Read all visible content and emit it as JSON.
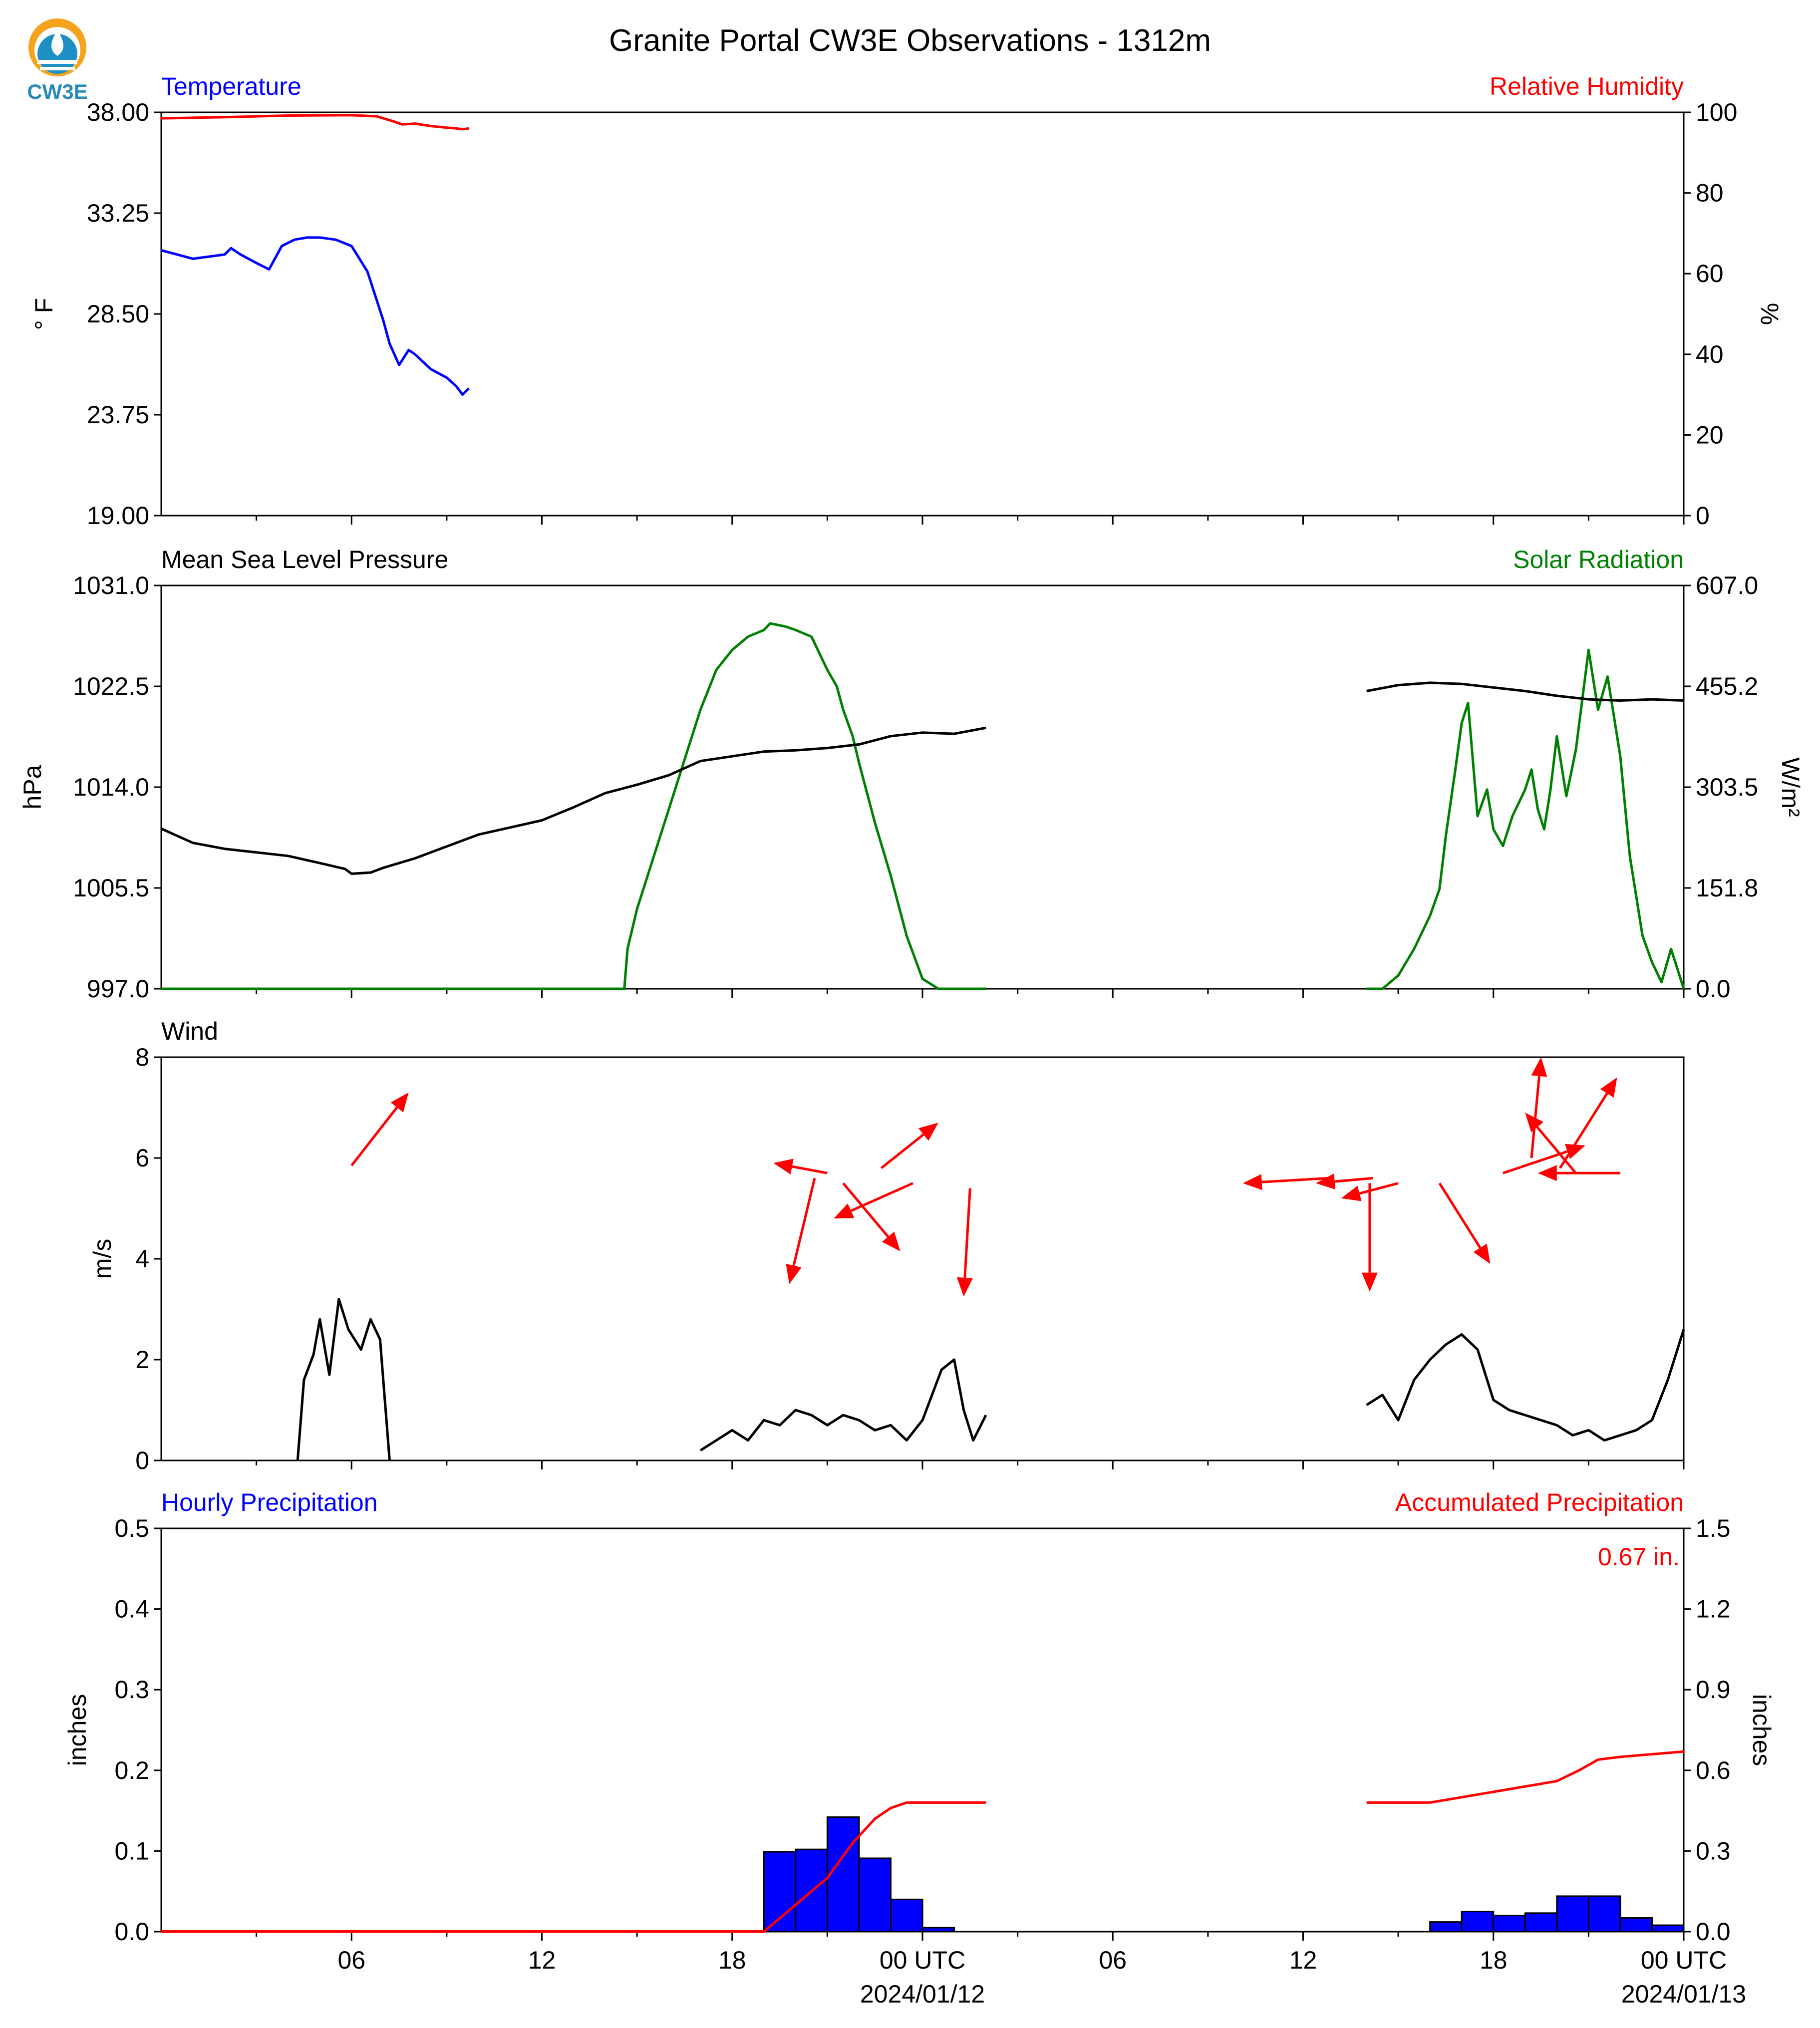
{
  "title": "Granite Portal CW3E Observations - 1312m",
  "logo": {
    "text": "CW3E",
    "colors": {
      "sun": "#f5a21c",
      "drop": "#1e8fc4",
      "text": "#2a8ab8"
    }
  },
  "x_axis": {
    "tick_labels": [
      "06",
      "12",
      "18",
      "00 UTC",
      "06",
      "12",
      "18",
      "00 UTC"
    ],
    "date_labels": [
      "2024/01/12",
      "2024/01/13"
    ]
  },
  "chart_data": [
    {
      "type": "line",
      "panel": "temperature-humidity",
      "left_label": "Temperature",
      "right_label": "Relative Humidity",
      "ylabel_left": "° F",
      "ylabel_right": "%",
      "ylim_left": [
        19.0,
        38.0
      ],
      "ylim_right": [
        0,
        100
      ],
      "yticks_left": [
        "38.00",
        "33.25",
        "28.50",
        "23.75",
        "19.00"
      ],
      "yticks_right": [
        "100",
        "80",
        "60",
        "40",
        "20",
        "0"
      ],
      "series": [
        {
          "axis": "left",
          "color": "#0000ff",
          "x": [
            0,
            1,
            2,
            2.2,
            2.5,
            3,
            3.4,
            3.8,
            4.2,
            4.6,
            5,
            5.5,
            6,
            6.5,
            7,
            7.2,
            7.5,
            7.8,
            8,
            8.5,
            9,
            9.3,
            9.5,
            9.7
          ],
          "y": [
            31.5,
            31.1,
            31.3,
            31.6,
            31.3,
            30.9,
            30.6,
            31.7,
            32.0,
            32.1,
            32.1,
            32.0,
            31.7,
            30.5,
            28.2,
            27.1,
            26.1,
            26.8,
            26.6,
            25.9,
            25.5,
            25.1,
            24.7,
            25.0
          ]
        },
        {
          "axis": "right",
          "color": "#ff0000",
          "x": [
            0,
            2,
            4,
            6,
            6.8,
            7.3,
            7.6,
            8,
            8.5,
            9,
            9.3,
            9.5,
            9.7
          ],
          "y": [
            98.5,
            98.8,
            99.2,
            99.3,
            99.0,
            97.8,
            97.0,
            97.2,
            96.6,
            96.2,
            96.0,
            95.8,
            96.0
          ]
        }
      ]
    },
    {
      "type": "line",
      "panel": "pressure-solar",
      "left_label": "Mean Sea Level Pressure",
      "right_label": "Solar Radiation",
      "ylabel_left": "hPa",
      "ylabel_right": "W/m²",
      "ylim_left": [
        997.0,
        1031.0
      ],
      "ylim_right": [
        0.0,
        607.0
      ],
      "yticks_left": [
        "1031.0",
        "1022.5",
        "1014.0",
        "1005.5",
        "997.0"
      ],
      "yticks_right": [
        "607.0",
        "455.2",
        "303.5",
        "151.8",
        "0.0"
      ],
      "series": [
        {
          "axis": "left",
          "color": "#000000",
          "segments": [
            {
              "x": [
                0,
                1,
                2,
                3,
                4,
                5,
                5.8,
                6,
                6.6,
                7,
                8,
                9,
                10,
                11,
                12,
                13,
                14,
                15,
                16,
                17,
                18,
                19,
                20,
                21,
                22,
                23,
                24,
                25,
                26
              ],
              "y": [
                1010.5,
                1009.3,
                1008.8,
                1008.5,
                1008.2,
                1007.6,
                1007.1,
                1006.7,
                1006.8,
                1007.2,
                1008.0,
                1009.0,
                1010.0,
                1010.6,
                1011.2,
                1012.3,
                1013.5,
                1014.2,
                1015.0,
                1016.2,
                1016.6,
                1017.0,
                1017.1,
                1017.3,
                1017.6,
                1018.3,
                1018.6,
                1018.5,
                1019.0
              ]
            },
            {
              "x": [
                38,
                39,
                40,
                41,
                42,
                43,
                44,
                45,
                46,
                47,
                48
              ],
              "y": [
                1022.1,
                1022.6,
                1022.8,
                1022.7,
                1022.4,
                1022.1,
                1021.7,
                1021.4,
                1021.3,
                1021.4,
                1021.3
              ]
            }
          ]
        },
        {
          "axis": "right",
          "color": "#008000",
          "segments": [
            {
              "x": [
                0,
                10,
                14.6,
                14.7,
                15,
                16,
                17,
                17.5,
                18,
                18.5,
                19,
                19.2,
                19.7,
                20,
                20.5,
                21,
                21.3,
                21.5,
                21.8,
                22,
                22.5,
                23,
                23.5,
                24,
                24.5,
                25,
                25.5,
                26
              ],
              "y": [
                0,
                0,
                0,
                60,
                120,
                270,
                420,
                480,
                510,
                530,
                540,
                550,
                545,
                540,
                530,
                480,
                455,
                420,
                380,
                340,
                250,
                170,
                80,
                15,
                0,
                0,
                0,
                0
              ]
            },
            {
              "x": [
                38,
                38.5,
                39,
                39.5,
                40,
                40.3,
                40.5,
                40.8,
                41,
                41.2,
                41.5,
                41.8,
                42,
                42.3,
                42.6,
                43,
                43.2,
                43.4,
                43.6,
                43.8,
                44,
                44.3,
                44.6,
                45,
                45.3,
                45.6,
                46,
                46.3,
                46.7,
                47,
                47.3,
                47.6,
                48
              ],
              "y": [
                0,
                0,
                20,
                60,
                110,
                150,
                230,
                330,
                400,
                430,
                260,
                300,
                240,
                215,
                260,
                300,
                330,
                270,
                240,
                300,
                380,
                290,
                360,
                510,
                420,
                470,
                350,
                200,
                80,
                40,
                10,
                60,
                0
              ]
            }
          ]
        }
      ]
    },
    {
      "type": "line",
      "panel": "wind",
      "left_label": "Wind",
      "ylabel": "m/s",
      "ylim": [
        0,
        8
      ],
      "yticks": [
        "8",
        "6",
        "4",
        "2",
        "0"
      ],
      "series": [
        {
          "color": "#000000",
          "segments": [
            {
              "x": [
                4.3,
                4.5,
                4.8,
                5,
                5.3,
                5.6,
                5.9,
                6.3,
                6.6,
                6.9,
                7.2
              ],
              "y": [
                0,
                1.6,
                2.1,
                2.8,
                1.7,
                3.2,
                2.6,
                2.2,
                2.8,
                2.4,
                0
              ]
            },
            {
              "x": [
                17.0,
                17.5,
                18,
                18.5,
                19,
                19.5,
                20,
                20.5,
                21,
                21.5,
                22,
                22.5,
                23,
                23.5,
                24,
                24.3,
                24.6,
                25,
                25.3,
                25.6,
                26
              ],
              "y": [
                0.2,
                0.4,
                0.6,
                0.4,
                0.8,
                0.7,
                1.0,
                0.9,
                0.7,
                0.9,
                0.8,
                0.6,
                0.7,
                0.4,
                0.8,
                1.3,
                1.8,
                2.0,
                1.0,
                0.4,
                0.9
              ]
            },
            {
              "x": [
                38,
                38.5,
                39,
                39.5,
                40,
                40.5,
                41,
                41.5,
                42,
                42.5,
                43,
                43.5,
                44,
                44.5,
                45,
                45.5,
                46,
                46.5,
                47,
                47.5,
                48
              ],
              "y": [
                1.1,
                1.3,
                0.8,
                1.6,
                2.0,
                2.3,
                2.5,
                2.2,
                1.2,
                1.0,
                0.9,
                0.8,
                0.7,
                0.5,
                0.6,
                0.4,
                0.5,
                0.6,
                0.8,
                1.6,
                2.6
              ]
            }
          ]
        }
      ],
      "arrows": [
        {
          "x": 6.0,
          "y": 5.85,
          "dx": 1.8,
          "dy": 1.45
        },
        {
          "x": 21.0,
          "y": 5.7,
          "dx": -1.7,
          "dy": 0.2
        },
        {
          "x": 22.7,
          "y": 5.8,
          "dx": 1.8,
          "dy": 0.9
        },
        {
          "x": 20.6,
          "y": 5.6,
          "dx": -0.8,
          "dy": -2.1
        },
        {
          "x": 21.5,
          "y": 5.5,
          "dx": 1.8,
          "dy": -1.35
        },
        {
          "x": 23.7,
          "y": 5.5,
          "dx": -2.5,
          "dy": -0.7
        },
        {
          "x": 25.5,
          "y": 5.4,
          "dx": -0.2,
          "dy": -2.15
        },
        {
          "x": 36.8,
          "y": 5.6,
          "dx": -2.7,
          "dy": -0.1
        },
        {
          "x": 38.2,
          "y": 5.6,
          "dx": -1.8,
          "dy": -0.1
        },
        {
          "x": 39.0,
          "y": 5.5,
          "dx": -1.8,
          "dy": -0.3
        },
        {
          "x": 38.1,
          "y": 5.5,
          "dx": 0.0,
          "dy": -2.15
        },
        {
          "x": 40.3,
          "y": 5.5,
          "dx": 1.6,
          "dy": -1.6
        },
        {
          "x": 43.2,
          "y": 6.0,
          "dx": 0.3,
          "dy": 2.0
        },
        {
          "x": 42.3,
          "y": 5.7,
          "dx": 2.6,
          "dy": 0.55
        },
        {
          "x": 44.6,
          "y": 5.7,
          "dx": -1.6,
          "dy": 1.2
        },
        {
          "x": 44.1,
          "y": 5.8,
          "dx": 1.8,
          "dy": 1.8
        },
        {
          "x": 46.0,
          "y": 5.7,
          "dx": -2.6,
          "dy": 0.0
        }
      ]
    },
    {
      "type": "bar",
      "panel": "precipitation",
      "left_label": "Hourly Precipitation",
      "right_label": "Accumulated Precipitation",
      "ylabel_left": "inches",
      "ylabel_right": "inches",
      "ylim_left": [
        0.0,
        0.5
      ],
      "ylim_right": [
        0.0,
        1.5
      ],
      "yticks_left": [
        "0.5",
        "0.4",
        "0.3",
        "0.2",
        "0.1",
        "0.0"
      ],
      "yticks_right": [
        "1.5",
        "1.2",
        "0.9",
        "0.6",
        "0.3",
        "0.0"
      ],
      "accumulated_total": "0.67 in.",
      "bars": [
        {
          "x": 19,
          "value": 0.099
        },
        {
          "x": 20,
          "value": 0.102
        },
        {
          "x": 21,
          "value": 0.142
        },
        {
          "x": 22,
          "value": 0.091
        },
        {
          "x": 23,
          "value": 0.04
        },
        {
          "x": 24,
          "value": 0.005
        },
        {
          "x": 40,
          "value": 0.012
        },
        {
          "x": 41,
          "value": 0.025
        },
        {
          "x": 42,
          "value": 0.02
        },
        {
          "x": 43,
          "value": 0.023
        },
        {
          "x": 44,
          "value": 0.044
        },
        {
          "x": 45,
          "value": 0.044
        },
        {
          "x": 46,
          "value": 0.017
        },
        {
          "x": 47,
          "value": 0.008
        }
      ],
      "accumulated": {
        "color": "#ff0000",
        "segments": [
          {
            "x": [
              0,
              19.0,
              20.0,
              21.0,
              21.8,
              22.5,
              23.0,
              23.5,
              24,
              25,
              26
            ],
            "y": [
              0,
              0,
              0.1,
              0.2,
              0.33,
              0.42,
              0.46,
              0.48,
              0.48,
              0.48,
              0.48
            ]
          },
          {
            "x": [
              38,
              40,
              41,
              42,
              43,
              44,
              44.7,
              45.3,
              46,
              47,
              48
            ],
            "y": [
              0.48,
              0.48,
              0.5,
              0.52,
              0.54,
              0.56,
              0.6,
              0.64,
              0.65,
              0.66,
              0.67
            ]
          }
        ]
      }
    }
  ],
  "colors": {
    "temperature": "#0000ff",
    "humidity": "#ff0000",
    "pressure": "#000000",
    "solar": "#008000",
    "wind": "#000000",
    "wind_arrows": "#ff0000",
    "hourly_precip": "#0000ff",
    "accum_precip": "#ff0000"
  }
}
